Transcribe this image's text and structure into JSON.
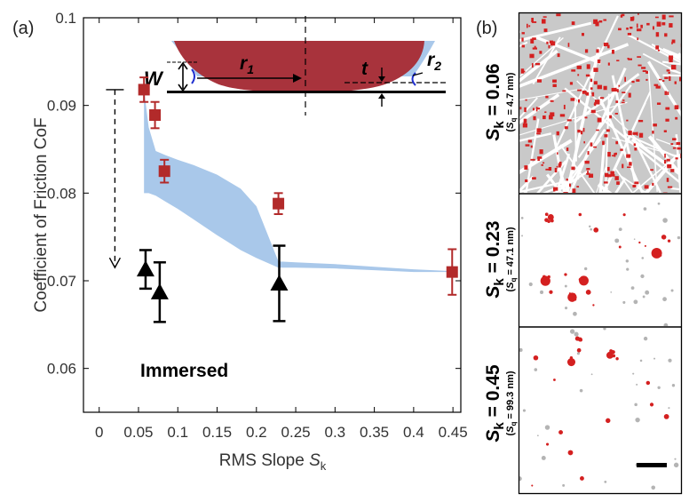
{
  "panels": {
    "a_label": "(a)",
    "b_label": "(b)"
  },
  "chart_data": {
    "type": "scatter",
    "title": "",
    "xlabel_main": "RMS Slope ",
    "xlabel_sym": "S",
    "xlabel_sub": "k",
    "ylabel": "Coefficient of Friction CoF",
    "xlim": [
      -0.02,
      0.46
    ],
    "ylim": [
      0.055,
      0.1
    ],
    "xticks": [
      "0",
      "0.05",
      "0.1",
      "0.15",
      "0.2",
      "0.25",
      "0.3",
      "0.35",
      "0.4",
      "0.45"
    ],
    "xtick_values": [
      0,
      0.05,
      0.1,
      0.15,
      0.2,
      0.25,
      0.3,
      0.35,
      0.4,
      0.45
    ],
    "yticks": [
      "0.06",
      "0.07",
      "0.08",
      "0.09",
      "0.1"
    ],
    "ytick_values": [
      0.06,
      0.07,
      0.08,
      0.09,
      0.1
    ],
    "grid": false,
    "series": [
      {
        "marker": "square",
        "color": "#b22a2a",
        "x": [
          0.057,
          0.071,
          0.083,
          0.228,
          0.449
        ],
        "y": [
          0.0918,
          0.0889,
          0.0825,
          0.0788,
          0.071
        ],
        "err": [
          0.0014,
          0.0015,
          0.0013,
          0.0012,
          0.0026
        ]
      },
      {
        "name": "Immersed",
        "marker": "triangle",
        "color": "#000000",
        "x": [
          0.059,
          0.077,
          0.229
        ],
        "y": [
          0.0713,
          0.0687,
          0.0697
        ],
        "err": [
          0.0022,
          0.0034,
          0.0043
        ]
      }
    ],
    "band": {
      "color": "#a9c8ea",
      "x": [
        0.057,
        0.063,
        0.072,
        0.085,
        0.1,
        0.12,
        0.15,
        0.18,
        0.2,
        0.228,
        0.25,
        0.3,
        0.35,
        0.4,
        0.45
      ],
      "upper": [
        0.0918,
        0.0875,
        0.0848,
        0.0843,
        0.0838,
        0.0832,
        0.0821,
        0.0805,
        0.0785,
        0.0722,
        0.0721,
        0.0719,
        0.0716,
        0.0713,
        0.0711
      ],
      "lower": [
        0.08,
        0.08,
        0.0797,
        0.079,
        0.0782,
        0.077,
        0.0752,
        0.0735,
        0.0726,
        0.0715,
        0.0715,
        0.0714,
        0.0712,
        0.071,
        0.071
      ]
    },
    "arrow": {
      "x": 0.02,
      "y_from": 0.0918,
      "y_to": 0.0715,
      "style": "dashed"
    },
    "annotations": {
      "immersed": "Immersed",
      "W": "W",
      "t": "t",
      "r1": "r",
      "r1_sub": "1",
      "r2": "r",
      "r2_sub": "2"
    }
  },
  "images": {
    "rows": [
      {
        "label": "S",
        "sub": "k",
        "value": " = 0.06",
        "sq_sym": "S",
        "sq_sub": "q",
        "sq_value": " = 4.7 nm",
        "red_coverage": "high",
        "grey_texture": true
      },
      {
        "label": "S",
        "sub": "k",
        "value": " = 0.23",
        "sq_sym": "S",
        "sq_sub": "q",
        "sq_value": " = 47.1 nm",
        "red_coverage": "low",
        "grey_texture": false
      },
      {
        "label": "S",
        "sub": "k",
        "value": " = 0.45",
        "sq_sym": "S",
        "sq_sub": "q",
        "sq_value": " = 99.3 nm",
        "red_coverage": "low",
        "grey_texture": false
      }
    ],
    "colors": {
      "contact": "#d42020",
      "texture": "#b4b4b4"
    }
  }
}
